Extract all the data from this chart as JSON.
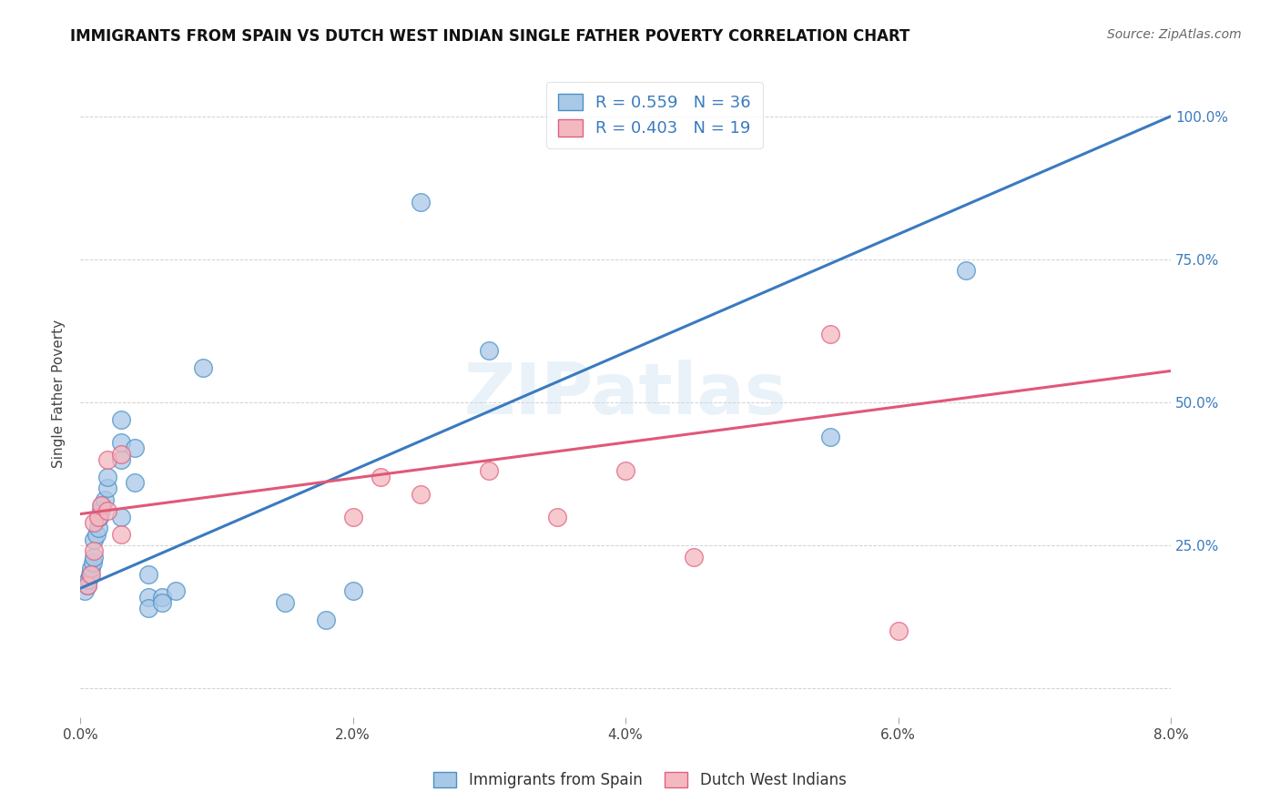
{
  "title": "IMMIGRANTS FROM SPAIN VS DUTCH WEST INDIAN SINGLE FATHER POVERTY CORRELATION CHART",
  "source": "Source: ZipAtlas.com",
  "ylabel": "Single Father Poverty",
  "yticks": [
    0.0,
    0.25,
    0.5,
    0.75,
    1.0
  ],
  "ytick_labels": [
    "",
    "25.0%",
    "50.0%",
    "75.0%",
    "100.0%"
  ],
  "xticks": [
    0.0,
    0.02,
    0.04,
    0.06,
    0.08
  ],
  "xlim": [
    0.0,
    0.08
  ],
  "ylim": [
    -0.05,
    1.08
  ],
  "blue_R": 0.559,
  "blue_N": 36,
  "pink_R": 0.403,
  "pink_N": 19,
  "blue_color": "#a8c8e8",
  "pink_color": "#f4b8c0",
  "blue_edge_color": "#4a90c4",
  "pink_edge_color": "#e06080",
  "blue_line_color": "#3a7abf",
  "pink_line_color": "#e05878",
  "blue_line": [
    [
      0.0,
      0.175
    ],
    [
      0.08,
      1.0
    ]
  ],
  "pink_line": [
    [
      0.0,
      0.305
    ],
    [
      0.08,
      0.555
    ]
  ],
  "blue_points": [
    [
      0.0003,
      0.17
    ],
    [
      0.0005,
      0.18
    ],
    [
      0.0006,
      0.19
    ],
    [
      0.0007,
      0.2
    ],
    [
      0.0008,
      0.21
    ],
    [
      0.0009,
      0.22
    ],
    [
      0.001,
      0.23
    ],
    [
      0.001,
      0.26
    ],
    [
      0.0012,
      0.27
    ],
    [
      0.0013,
      0.28
    ],
    [
      0.0014,
      0.3
    ],
    [
      0.0015,
      0.31
    ],
    [
      0.0016,
      0.32
    ],
    [
      0.0018,
      0.33
    ],
    [
      0.002,
      0.35
    ],
    [
      0.002,
      0.37
    ],
    [
      0.003,
      0.3
    ],
    [
      0.003,
      0.4
    ],
    [
      0.003,
      0.43
    ],
    [
      0.003,
      0.47
    ],
    [
      0.004,
      0.36
    ],
    [
      0.004,
      0.42
    ],
    [
      0.005,
      0.2
    ],
    [
      0.005,
      0.16
    ],
    [
      0.005,
      0.14
    ],
    [
      0.006,
      0.16
    ],
    [
      0.006,
      0.15
    ],
    [
      0.007,
      0.17
    ],
    [
      0.009,
      0.56
    ],
    [
      0.015,
      0.15
    ],
    [
      0.018,
      0.12
    ],
    [
      0.02,
      0.17
    ],
    [
      0.025,
      0.85
    ],
    [
      0.03,
      0.59
    ],
    [
      0.055,
      0.44
    ],
    [
      0.065,
      0.73
    ]
  ],
  "pink_points": [
    [
      0.0005,
      0.18
    ],
    [
      0.0008,
      0.2
    ],
    [
      0.001,
      0.24
    ],
    [
      0.001,
      0.29
    ],
    [
      0.0013,
      0.3
    ],
    [
      0.0015,
      0.32
    ],
    [
      0.002,
      0.31
    ],
    [
      0.002,
      0.4
    ],
    [
      0.003,
      0.27
    ],
    [
      0.003,
      0.41
    ],
    [
      0.02,
      0.3
    ],
    [
      0.022,
      0.37
    ],
    [
      0.025,
      0.34
    ],
    [
      0.03,
      0.38
    ],
    [
      0.035,
      0.3
    ],
    [
      0.04,
      0.38
    ],
    [
      0.045,
      0.23
    ],
    [
      0.055,
      0.62
    ],
    [
      0.06,
      0.1
    ]
  ],
  "watermark_text": "ZIPatlas",
  "background_color": "#ffffff"
}
